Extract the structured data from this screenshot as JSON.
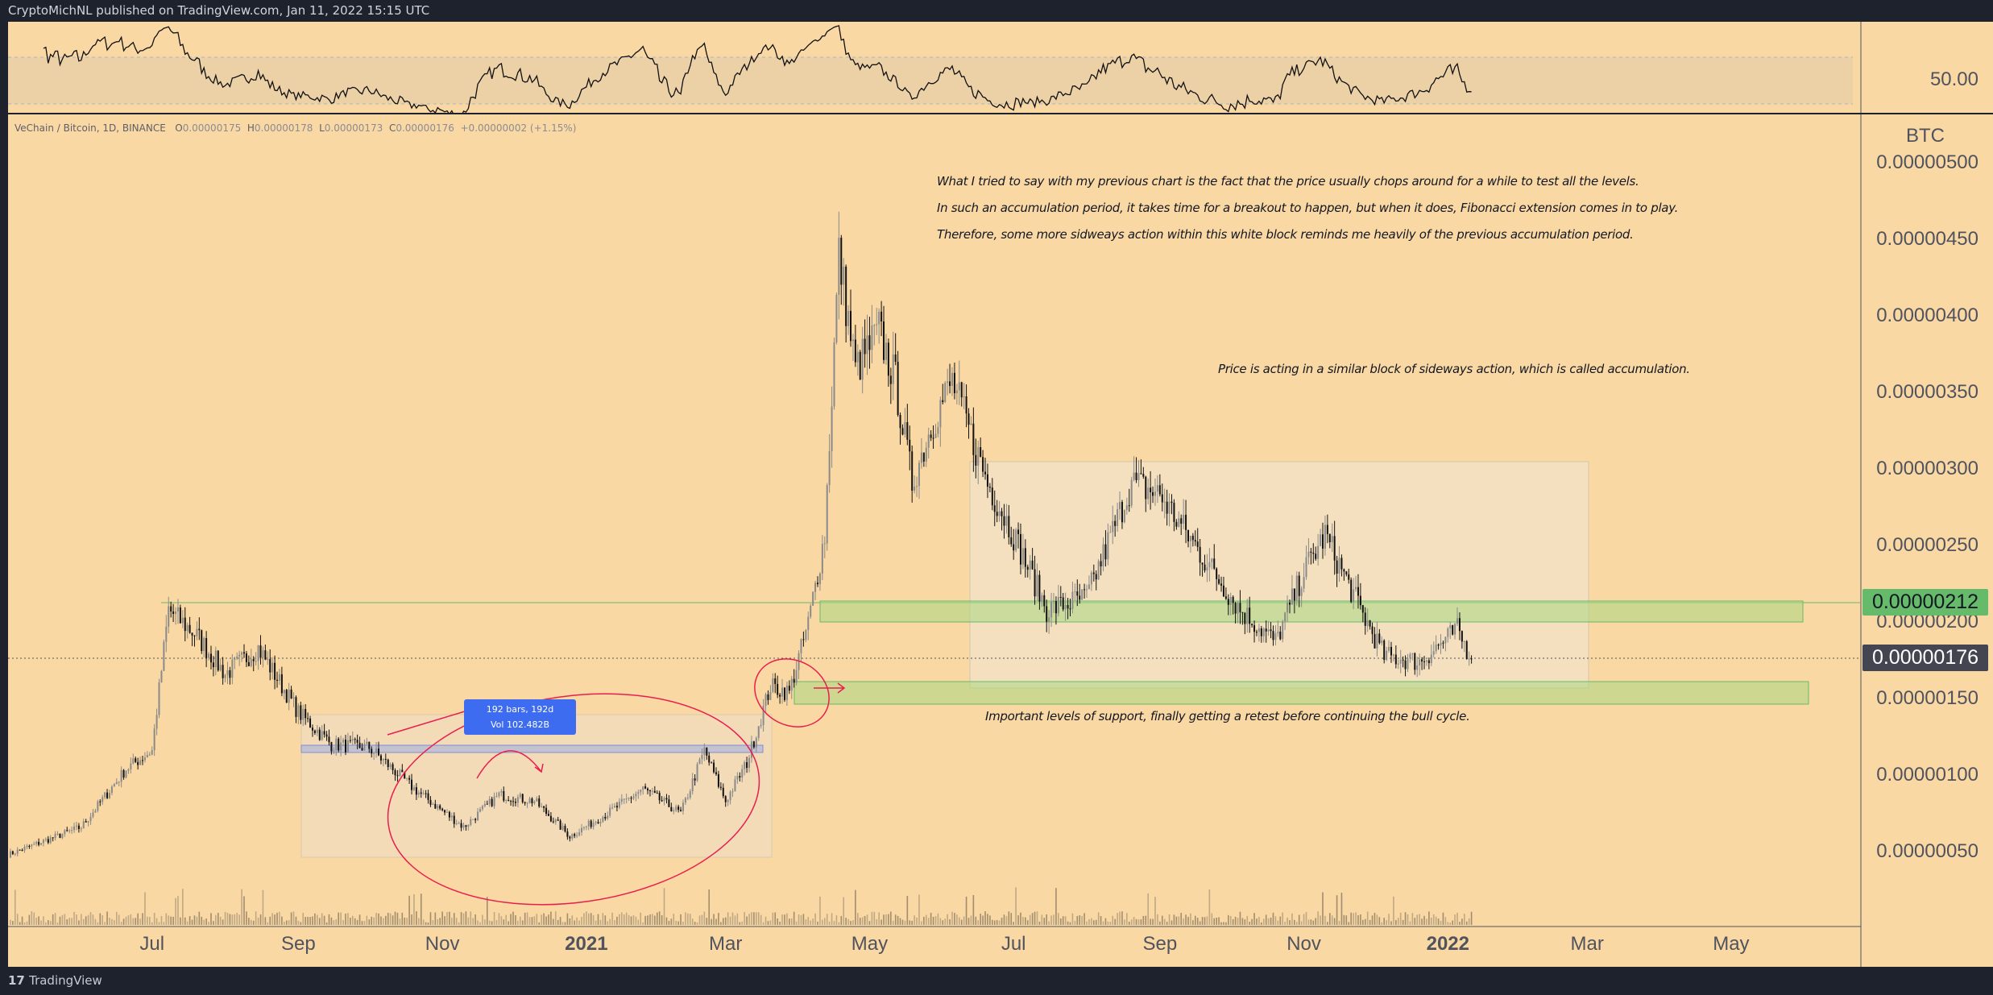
{
  "header": {
    "published": "CryptoMichNL published on TradingView.com, Jan 11, 2022 15:15 UTC"
  },
  "legend": {
    "symbol": "VeChain / Bitcoin, 1D, BINANCE",
    "o_label": "O",
    "open": "0.00000175",
    "h_label": "H",
    "high": "0.00000178",
    "l_label": "L",
    "low": "0.00000173",
    "c_label": "C",
    "close": "0.00000176",
    "change": "+0.00000002 (+1.15%)"
  },
  "rsi": {
    "label": "50.00"
  },
  "price_axis": {
    "unit": "BTC",
    "ticks": [
      "0.00000500",
      "0.00000450",
      "0.00000400",
      "0.00000350",
      "0.00000300",
      "0.00000250",
      "0.00000200",
      "0.00000150",
      "0.00000100",
      "0.00000050"
    ],
    "tick_values": [
      500,
      450,
      400,
      350,
      300,
      250,
      200,
      150,
      100,
      50
    ]
  },
  "tags": {
    "level": "0.00000212",
    "current": "0.00000176",
    "level_value": 212,
    "current_value": 176
  },
  "time_axis": {
    "ticks": [
      "Jul",
      "Sep",
      "Nov",
      "2021",
      "Mar",
      "May",
      "Jul",
      "Sep",
      "Nov",
      "2022",
      "Mar",
      "May"
    ],
    "tick_days": [
      61,
      123,
      184,
      245,
      304,
      365,
      426,
      488,
      549,
      610,
      669,
      730
    ]
  },
  "measure": {
    "line1": "192 bars, 192d",
    "line2": "Vol 102.482B"
  },
  "notes": {
    "line1": "What I tried to say with my previous chart is the fact that the price usually chops around for a while to test all the levels.",
    "line2": "In such an accumulation period, it takes time for a breakout to happen, but when it does, Fibonacci extension comes in to play.",
    "line3": "Therefore, some more sidweays action within this white block reminds me heavily of the previous accumulation period.",
    "price_note": "Price is acting in a similar block of sideways action, which is called accumulation.",
    "support_note": "Important levels of support, finally getting a retest before continuing the bull cycle."
  },
  "footer": {
    "brand": "TradingView"
  },
  "colors": {
    "background": "#f9d8a3",
    "support_zone": "#b9dc8f",
    "annotation": "#e91e4f",
    "tag_green": "#66bb6a",
    "tag_dark": "#434651"
  },
  "chart_data": {
    "type": "candlestick",
    "title": "VeChain / Bitcoin, 1D, BINANCE",
    "ylabel": "BTC (x1e-8)",
    "ylim": [
      0,
      520
    ],
    "x_unit": "days since 2020-05-01",
    "close_waypoints": [
      [
        0,
        48
      ],
      [
        31,
        66
      ],
      [
        50,
        104
      ],
      [
        61,
        116
      ],
      [
        68,
        208
      ],
      [
        80,
        191
      ],
      [
        92,
        166
      ],
      [
        106,
        183
      ],
      [
        123,
        141
      ],
      [
        137,
        120
      ],
      [
        153,
        118
      ],
      [
        172,
        91
      ],
      [
        193,
        66
      ],
      [
        208,
        87
      ],
      [
        223,
        83
      ],
      [
        238,
        60
      ],
      [
        254,
        75
      ],
      [
        269,
        91
      ],
      [
        285,
        75
      ],
      [
        295,
        116
      ],
      [
        304,
        83
      ],
      [
        313,
        108
      ],
      [
        323,
        158
      ],
      [
        331,
        154
      ],
      [
        339,
        199
      ],
      [
        346,
        257
      ],
      [
        352,
        440
      ],
      [
        359,
        365
      ],
      [
        369,
        390
      ],
      [
        376,
        357
      ],
      [
        383,
        291
      ],
      [
        392,
        332
      ],
      [
        400,
        357
      ],
      [
        415,
        291
      ],
      [
        426,
        257
      ],
      [
        440,
        208
      ],
      [
        457,
        216
      ],
      [
        476,
        291
      ],
      [
        488,
        283
      ],
      [
        507,
        241
      ],
      [
        522,
        208
      ],
      [
        537,
        187
      ],
      [
        549,
        233
      ],
      [
        558,
        257
      ],
      [
        573,
        208
      ],
      [
        583,
        178
      ],
      [
        598,
        174
      ],
      [
        614,
        195
      ],
      [
        620,
        176
      ]
    ],
    "levels": {
      "upper_zone": [
        200,
        212
      ],
      "lower_zone": [
        145,
        158
      ],
      "last_price": 176
    }
  }
}
